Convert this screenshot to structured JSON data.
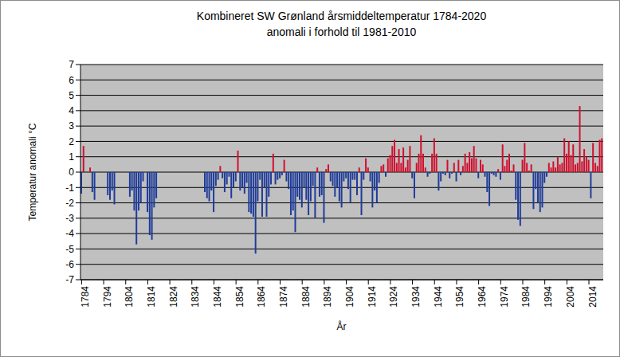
{
  "chart_data": {
    "type": "bar",
    "title": "Kombineret SW Grønland årsmiddeltemperatur 1784-2020",
    "subtitle": "anomali i forhold til 1981-2010",
    "xlabel": "År",
    "ylabel": "Temperatur anomali °C",
    "x": [
      1784,
      1785,
      1786,
      1787,
      1788,
      1789,
      1790,
      1791,
      1792,
      1793,
      1794,
      1795,
      1796,
      1797,
      1798,
      1799,
      1800,
      1801,
      1802,
      1803,
      1804,
      1805,
      1806,
      1807,
      1808,
      1809,
      1810,
      1811,
      1812,
      1813,
      1814,
      1815,
      1816,
      1817,
      1818,
      1819,
      1820,
      1821,
      1822,
      1823,
      1824,
      1825,
      1826,
      1827,
      1828,
      1829,
      1830,
      1831,
      1832,
      1833,
      1834,
      1835,
      1836,
      1837,
      1838,
      1839,
      1840,
      1841,
      1842,
      1843,
      1844,
      1845,
      1846,
      1847,
      1848,
      1849,
      1850,
      1851,
      1852,
      1853,
      1854,
      1855,
      1856,
      1857,
      1858,
      1859,
      1860,
      1861,
      1862,
      1863,
      1864,
      1865,
      1866,
      1867,
      1868,
      1869,
      1870,
      1871,
      1872,
      1873,
      1874,
      1875,
      1876,
      1877,
      1878,
      1879,
      1880,
      1881,
      1882,
      1883,
      1884,
      1885,
      1886,
      1887,
      1888,
      1889,
      1890,
      1891,
      1892,
      1893,
      1894,
      1895,
      1896,
      1897,
      1898,
      1899,
      1900,
      1901,
      1902,
      1903,
      1904,
      1905,
      1906,
      1907,
      1908,
      1909,
      1910,
      1911,
      1912,
      1913,
      1914,
      1915,
      1916,
      1917,
      1918,
      1919,
      1920,
      1921,
      1922,
      1923,
      1924,
      1925,
      1926,
      1927,
      1928,
      1929,
      1930,
      1931,
      1932,
      1933,
      1934,
      1935,
      1936,
      1937,
      1938,
      1939,
      1940,
      1941,
      1942,
      1943,
      1944,
      1945,
      1946,
      1947,
      1948,
      1949,
      1950,
      1951,
      1952,
      1953,
      1954,
      1955,
      1956,
      1957,
      1958,
      1959,
      1960,
      1961,
      1962,
      1963,
      1964,
      1965,
      1966,
      1967,
      1968,
      1969,
      1970,
      1971,
      1972,
      1973,
      1974,
      1975,
      1976,
      1977,
      1978,
      1979,
      1980,
      1981,
      1982,
      1983,
      1984,
      1985,
      1986,
      1987,
      1988,
      1989,
      1990,
      1991,
      1992,
      1993,
      1994,
      1995,
      1996,
      1997,
      1998,
      1999,
      2000,
      2001,
      2002,
      2003,
      2004,
      2005,
      2006,
      2007,
      2008,
      2009,
      2010,
      2011,
      2012,
      2013,
      2014,
      2015,
      2016,
      2017,
      2018,
      2019,
      2020
    ],
    "values": [
      -1.4,
      1.7,
      null,
      null,
      0.3,
      -1.3,
      -1.8,
      null,
      null,
      null,
      null,
      null,
      -1.5,
      -1.8,
      -1.2,
      -2.1,
      null,
      null,
      null,
      null,
      null,
      null,
      -1.6,
      -1.2,
      -2.5,
      -4.7,
      -2.5,
      -2.0,
      -0.6,
      null,
      -2.6,
      -4.1,
      -4.4,
      -2.3,
      -1.7,
      null,
      null,
      null,
      null,
      null,
      null,
      null,
      null,
      null,
      null,
      null,
      null,
      null,
      null,
      null,
      null,
      null,
      null,
      null,
      null,
      null,
      -1.3,
      -1.7,
      -1.9,
      -1.2,
      -2.6,
      -0.9,
      -0.5,
      0.4,
      -0.4,
      -1.3,
      -0.8,
      -0.3,
      -1.7,
      -1.0,
      -0.6,
      1.4,
      -1.2,
      -1.0,
      -1.4,
      -0.7,
      -2.6,
      -2.7,
      -2.9,
      -5.3,
      -1.9,
      -0.5,
      -2.9,
      -1.0,
      -2.9,
      -1.6,
      -0.8,
      1.2,
      -0.8,
      -0.5,
      -0.4,
      -0.2,
      0.8,
      -0.6,
      -1.1,
      -2.8,
      -2.5,
      -3.9,
      -1.6,
      -1.8,
      -2.3,
      -1.0,
      -1.8,
      -2.8,
      -1.9,
      -0.9,
      -3.0,
      0.3,
      -1.6,
      -1.5,
      -3.3,
      0.2,
      0.5,
      -0.6,
      -0.9,
      -1.6,
      -1.0,
      -1.9,
      -2.3,
      -0.6,
      -0.4,
      -1.1,
      -2.0,
      -0.5,
      -0.5,
      -1.5,
      0.3,
      -2.8,
      -0.5,
      0.9,
      0.3,
      -0.6,
      -2.3,
      -1.2,
      -2.0,
      -0.7,
      0.4,
      0.5,
      -0.3,
      0.9,
      1.1,
      1.7,
      2.1,
      0.6,
      1.5,
      0.6,
      1.6,
      0.3,
      0.8,
      1.7,
      -0.4,
      -1.7,
      0.6,
      1.2,
      2.4,
      1.2,
      0.3,
      -0.3,
      -0.1,
      1.2,
      2.2,
      1.2,
      -1.2,
      -0.6,
      -0.1,
      -0.2,
      0.8,
      -0.4,
      -0.1,
      0.6,
      -0.6,
      0.8,
      -0.2,
      0.4,
      1.2,
      0.6,
      1.3,
      0.9,
      1.7,
      0.9,
      -0.4,
      0.8,
      0.5,
      -0.3,
      -1.3,
      -2.2,
      -0.1,
      -0.2,
      -0.3,
      0.2,
      -0.5,
      1.8,
      0.4,
      0.8,
      1.2,
      0.1,
      0.5,
      -1.8,
      -3.1,
      -3.5,
      0.8,
      1.9,
      0.6,
      0.1,
      0.5,
      -2.4,
      -1.1,
      -2.0,
      -2.6,
      -2.3,
      -0.7,
      -0.3,
      0.6,
      0.3,
      0.7,
      0.3,
      1.0,
      0.5,
      0.6,
      2.2,
      1.2,
      2.0,
      1.1,
      1.8,
      0.5,
      0.6,
      4.3,
      0.7,
      1.5,
      1.0,
      0.8,
      -1.7,
      1.9,
      0.6,
      0.4,
      2.1,
      2.2
    ],
    "colors": [
      "#1f3c99",
      "#d0102e",
      null,
      null,
      "#d0102e",
      "#1f3c99",
      "#1f3c99",
      null,
      null,
      null,
      null,
      null,
      "#1f3c99",
      "#1f3c99",
      "#1f3c99",
      "#1f3c99",
      null,
      null,
      null,
      null,
      null,
      null,
      "#1f3c99",
      "#1f3c99",
      "#1f3c99",
      "#1f3c99",
      "#1f3c99",
      "#1f3c99",
      "#1f3c99",
      null,
      "#1f3c99",
      "#1f3c99",
      "#1f3c99",
      "#1f3c99",
      "#1f3c99",
      null,
      null,
      null,
      null,
      null,
      null,
      null,
      null,
      null,
      null,
      null,
      null,
      null,
      null,
      null,
      null,
      null,
      null,
      null,
      null,
      null,
      "#1f3c99",
      "#1f3c99",
      "#1f3c99",
      "#1f3c99",
      "#1f3c99",
      "#1f3c99",
      "#1f3c99",
      "#d0102e",
      "#1f3c99",
      "#1f3c99",
      "#1f3c99",
      "#1f3c99",
      "#1f3c99",
      "#1f3c99",
      "#1f3c99",
      "#d0102e",
      "#1f3c99",
      "#1f3c99",
      "#1f3c99",
      "#1f3c99",
      "#1f3c99",
      "#1f3c99",
      "#1f3c99",
      "#1f3c99",
      "#1f3c99",
      "#1f3c99",
      "#1f3c99",
      "#1f3c99",
      "#1f3c99",
      "#1f3c99",
      "#1f3c99",
      "#d0102e",
      "#1f3c99",
      "#1f3c99",
      "#1f3c99",
      "#1f3c99",
      "#d0102e",
      "#1f3c99",
      "#1f3c99",
      "#1f3c99",
      "#1f3c99",
      "#1f3c99",
      "#1f3c99",
      "#1f3c99",
      "#1f3c99",
      "#1f3c99",
      "#1f3c99",
      "#1f3c99",
      "#1f3c99",
      "#1f3c99",
      "#1f3c99",
      "#d0102e",
      "#1f3c99",
      "#1f3c99",
      "#1f3c99",
      "#d0102e",
      "#d0102e",
      "#1f3c99",
      "#1f3c99",
      "#1f3c99",
      "#1f3c99",
      "#1f3c99",
      "#1f3c99",
      "#1f3c99",
      "#1f3c99",
      "#1f3c99",
      "#1f3c99",
      "#1f3c99",
      "#1f3c99",
      "#1f3c99",
      "#d0102e",
      "#1f3c99",
      "#1f3c99",
      "#d0102e",
      "#d0102e",
      "#1f3c99",
      "#1f3c99",
      "#1f3c99",
      "#1f3c99",
      "#1f3c99",
      "#d0102e",
      "#d0102e",
      "#1f3c99",
      "#d0102e",
      "#d0102e",
      "#d0102e",
      "#d0102e",
      "#d0102e",
      "#d0102e",
      "#d0102e",
      "#d0102e",
      "#d0102e",
      "#d0102e",
      "#d0102e",
      "#1f3c99",
      "#1f3c99",
      "#d0102e",
      "#d0102e",
      "#d0102e",
      "#d0102e",
      "#d0102e",
      "#1f3c99",
      "#1f3c99",
      "#d0102e",
      "#d0102e",
      "#d0102e",
      "#1f3c99",
      "#1f3c99",
      "#1f3c99",
      "#1f3c99",
      "#d0102e",
      "#1f3c99",
      "#1f3c99",
      "#d0102e",
      "#1f3c99",
      "#d0102e",
      "#1f3c99",
      "#d0102e",
      "#d0102e",
      "#d0102e",
      "#d0102e",
      "#d0102e",
      "#d0102e",
      "#d0102e",
      "#1f3c99",
      "#d0102e",
      "#d0102e",
      "#1f3c99",
      "#1f3c99",
      "#1f3c99",
      "#1f3c99",
      "#1f3c99",
      "#1f3c99",
      "#d0102e",
      "#1f3c99",
      "#d0102e",
      "#d0102e",
      "#d0102e",
      "#d0102e",
      "#d0102e",
      "#d0102e",
      "#1f3c99",
      "#1f3c99",
      "#1f3c99",
      "#d0102e",
      "#d0102e",
      "#d0102e",
      "#d0102e",
      "#d0102e",
      "#1f3c99",
      "#1f3c99",
      "#1f3c99",
      "#1f3c99",
      "#1f3c99",
      "#1f3c99",
      "#1f3c99",
      "#d0102e",
      "#d0102e",
      "#d0102e",
      "#d0102e",
      "#d0102e",
      "#d0102e",
      "#d0102e",
      "#d0102e",
      "#d0102e",
      "#d0102e",
      "#d0102e",
      "#d0102e",
      "#d0102e",
      "#d0102e",
      "#d0102e",
      "#d0102e",
      "#d0102e",
      "#d0102e",
      "#d0102e",
      "#1f3c99",
      "#d0102e",
      "#d0102e",
      "#d0102e",
      "#d0102e",
      "#d0102e"
    ],
    "xlim": [
      1783.5,
      2020.5
    ],
    "xticks": [
      1784,
      1794,
      1804,
      1814,
      1824,
      1834,
      1844,
      1854,
      1864,
      1874,
      1884,
      1894,
      1904,
      1914,
      1924,
      1934,
      1944,
      1954,
      1964,
      1974,
      1984,
      1994,
      2004,
      2014
    ],
    "ylim": [
      -7,
      7
    ],
    "yticks": [
      -7,
      -6,
      -5,
      -4,
      -3,
      -2,
      -1,
      0,
      1,
      2,
      3,
      4,
      5,
      6,
      7
    ],
    "grid": true
  }
}
